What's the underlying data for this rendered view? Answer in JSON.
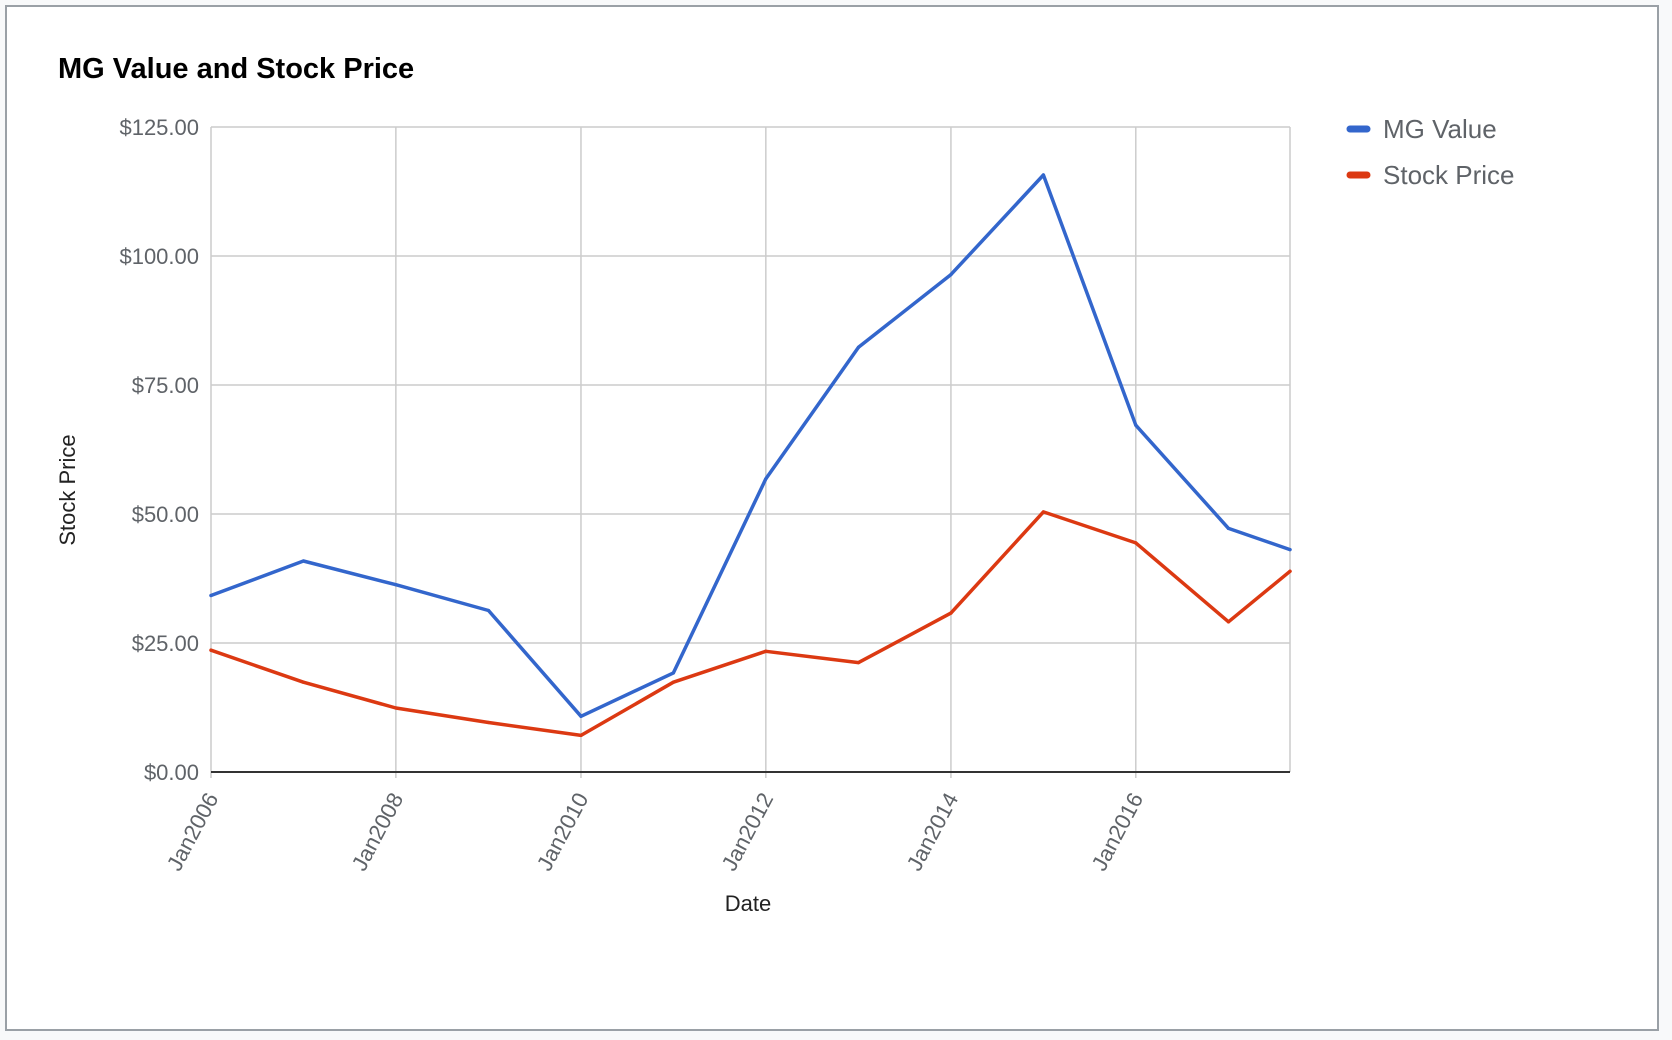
{
  "chart_data": {
    "type": "line",
    "title": "MG Value and Stock Price",
    "xlabel": "Date",
    "ylabel": "Stock Price",
    "x_ticks": [
      "Jan2006",
      "Jan2008",
      "Jan2010",
      "Jan2012",
      "Jan2014",
      "Jan2016"
    ],
    "y_ticks": [
      "$0.00",
      "$25.00",
      "$50.00",
      "$75.00",
      "$100.00",
      "$125.00"
    ],
    "xlim": [
      "2006-01-01",
      "2017-09-01"
    ],
    "ylim": [
      0,
      125
    ],
    "grid": true,
    "legend_position": "right",
    "x": [
      "2006-01-01",
      "2007-01-01",
      "2008-01-01",
      "2009-01-01",
      "2010-01-01",
      "2011-01-01",
      "2012-01-01",
      "2013-01-01",
      "2014-01-01",
      "2015-01-01",
      "2016-01-01",
      "2017-01-01",
      "2017-09-01"
    ],
    "series": [
      {
        "name": "MG Value",
        "color": "#3366cc",
        "values": [
          34.2,
          40.9,
          36.3,
          31.3,
          10.8,
          19.2,
          56.8,
          82.3,
          96.4,
          115.7,
          67.2,
          47.2,
          43.1
        ]
      },
      {
        "name": "Stock Price",
        "color": "#dc3912",
        "values": [
          23.6,
          17.4,
          12.4,
          9.6,
          7.1,
          17.4,
          23.4,
          21.2,
          30.8,
          50.4,
          44.4,
          29.1,
          38.9
        ]
      }
    ]
  }
}
